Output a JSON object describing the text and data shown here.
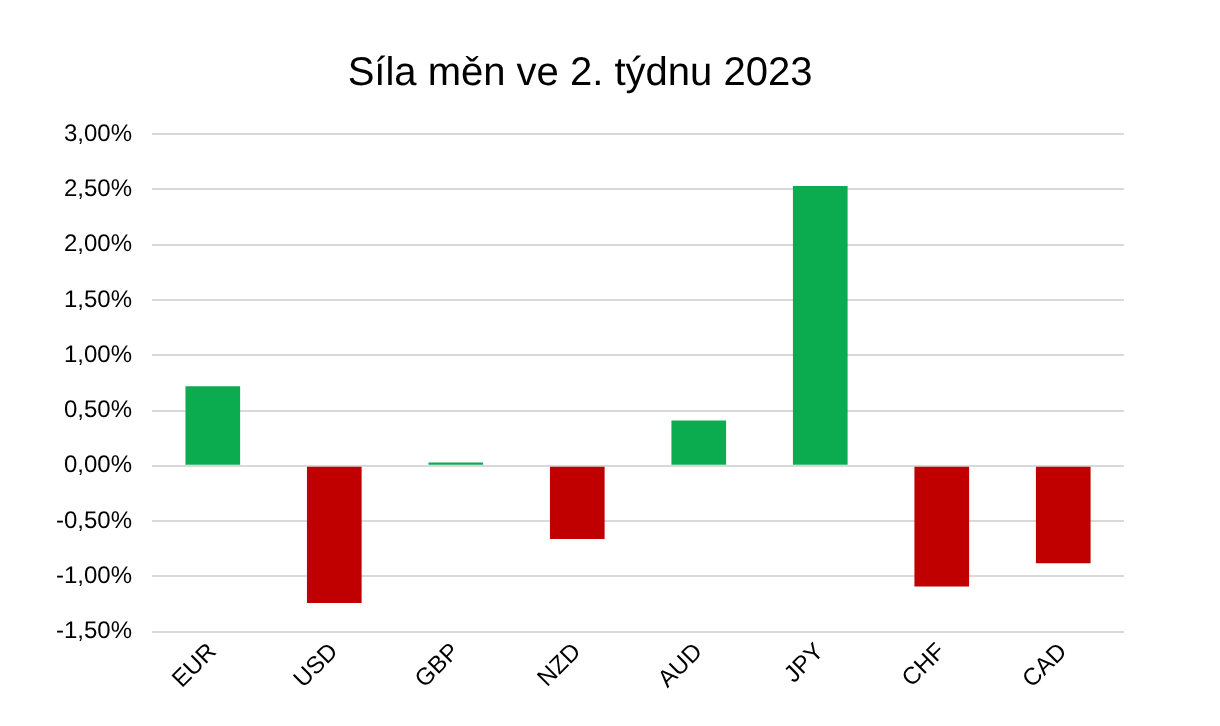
{
  "chart_data": {
    "type": "bar",
    "title": "Síla měn ve 2. týdnu 2023",
    "categories": [
      "EUR",
      "USD",
      "GBP",
      "NZD",
      "AUD",
      "JPY",
      "CHF",
      "CAD"
    ],
    "values": [
      0.72,
      -1.24,
      0.03,
      -0.66,
      0.41,
      2.53,
      -1.09,
      -0.88
    ],
    "colors": [
      "#0bac4f",
      "#c00000",
      "#0bac4f",
      "#c00000",
      "#0bac4f",
      "#0bac4f",
      "#c00000",
      "#c00000"
    ],
    "ylim": [
      -1.5,
      3
    ],
    "yticks": [
      {
        "value": -1.5,
        "label": "-1,50%"
      },
      {
        "value": -1,
        "label": "-1,00%"
      },
      {
        "value": -0.5,
        "label": "-0,50%"
      },
      {
        "value": 0,
        "label": "0,00%"
      },
      {
        "value": 0.5,
        "label": "0,50%"
      },
      {
        "value": 1,
        "label": "1,00%"
      },
      {
        "value": 1.5,
        "label": "1,50%"
      },
      {
        "value": 2,
        "label": "2,00%"
      },
      {
        "value": 2.5,
        "label": "2,50%"
      },
      {
        "value": 3,
        "label": "3,00%"
      }
    ],
    "grid": "y"
  }
}
